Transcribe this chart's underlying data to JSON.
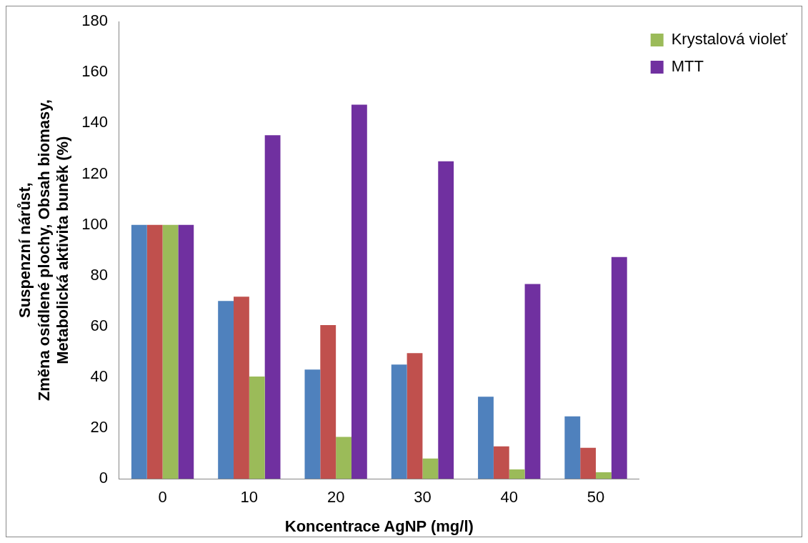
{
  "chart_data": {
    "type": "bar",
    "xlabel": "Koncentrace AgNP (mg/l)",
    "ylabel": "Suspenzní nárůst,\nZměna osídlené plochy, Obsah biomasy,\nMetabolická aktivita buněk (%)",
    "categories": [
      "0",
      "10",
      "20",
      "30",
      "40",
      "50"
    ],
    "series": [
      {
        "color": "#4f81bd",
        "values": [
          100,
          70,
          43,
          45,
          32.3,
          24.6
        ]
      },
      {
        "color": "#c0504d",
        "values": [
          100,
          71.7,
          60.5,
          49.5,
          12.8,
          12.2
        ]
      },
      {
        "name": "Krystalová violeť",
        "color": "#9bbb59",
        "values": [
          100,
          40.3,
          16.5,
          8,
          3.7,
          2.6
        ]
      },
      {
        "name": "MTT",
        "color": "#7030a0",
        "values": [
          100,
          135.3,
          147.3,
          125,
          76.7,
          87.3
        ]
      }
    ],
    "ylim": [
      0,
      180
    ],
    "yticks": [
      0,
      20,
      40,
      60,
      80,
      100,
      120,
      140,
      160,
      180
    ],
    "grid": false,
    "legend": "top right"
  }
}
